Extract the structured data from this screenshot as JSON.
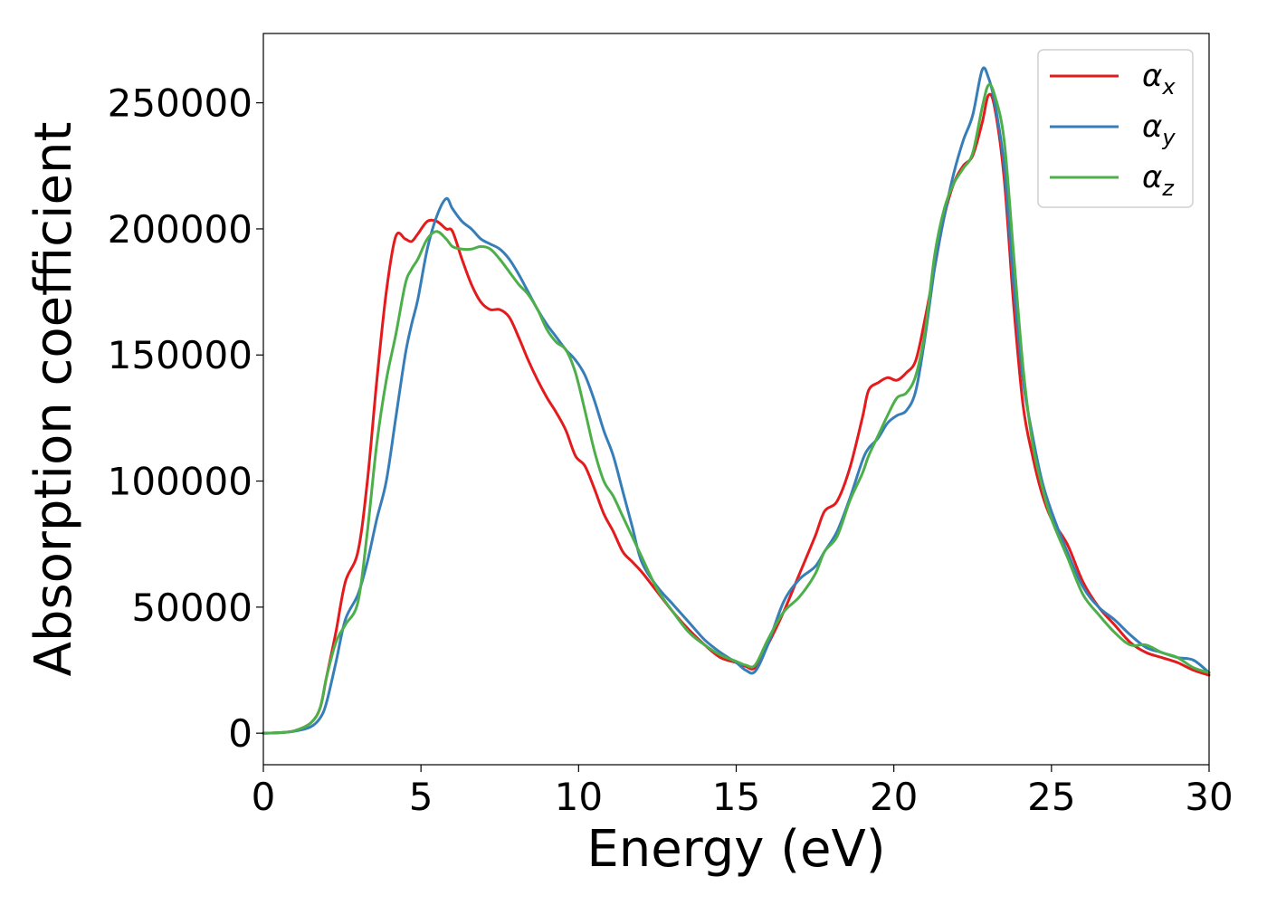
{
  "chart_data": {
    "type": "line",
    "xlabel": "Energy (eV)",
    "ylabel": "Absorption coefficient",
    "xlim": [
      0,
      30
    ],
    "ylim": [
      -12500,
      277500
    ],
    "x_ticks": [
      "0",
      "5",
      "10",
      "15",
      "20",
      "25",
      "30"
    ],
    "y_ticks": [
      "0",
      "50000",
      "100000",
      "150000",
      "200000",
      "250000"
    ],
    "grid": false,
    "legend_position": "top-right",
    "series": [
      {
        "name": "αx",
        "symbol": "α",
        "subscript": "x",
        "color": "#e41a1c",
        "x": [
          0,
          0.5,
          1,
          1.5,
          1.8,
          2,
          2.3,
          2.6,
          3,
          3.3,
          3.6,
          3.9,
          4.2,
          4.5,
          4.7,
          4.9,
          5.2,
          5.5,
          5.8,
          6,
          6.3,
          6.6,
          6.9,
          7.2,
          7.5,
          7.8,
          8.1,
          8.4,
          8.7,
          9.0,
          9.3,
          9.6,
          9.9,
          10.2,
          10.5,
          10.8,
          11.1,
          11.4,
          11.7,
          12,
          12.5,
          13,
          13.5,
          14,
          14.5,
          15,
          15.3,
          15.6,
          16,
          16.5,
          17,
          17.5,
          17.8,
          18.2,
          18.6,
          19.0,
          19.2,
          19.5,
          19.8,
          20.1,
          20.4,
          20.7,
          21,
          21.3,
          21.6,
          21.9,
          22.2,
          22.5,
          22.8,
          23.0,
          23.2,
          23.5,
          23.8,
          24.1,
          24.4,
          24.7,
          25,
          25.5,
          26,
          26.5,
          27,
          27.5,
          28,
          28.5,
          29,
          29.5,
          30
        ],
        "y": [
          0,
          200,
          1000,
          4000,
          10000,
          22000,
          40000,
          60000,
          72000,
          100000,
          140000,
          175000,
          197000,
          196000,
          195000,
          198000,
          203000,
          203000,
          200000,
          199000,
          188000,
          178000,
          171000,
          168000,
          168000,
          165000,
          157000,
          148000,
          140000,
          133000,
          127000,
          120000,
          110000,
          106000,
          97000,
          87000,
          80000,
          72000,
          68000,
          64000,
          56000,
          48000,
          41000,
          35000,
          30000,
          28000,
          26500,
          26000,
          35000,
          48000,
          63000,
          78000,
          88000,
          92000,
          105000,
          125000,
          136000,
          139000,
          141000,
          140000,
          143000,
          148000,
          165000,
          185000,
          205000,
          218000,
          225000,
          229000,
          242000,
          253000,
          248000,
          220000,
          170000,
          130000,
          110000,
          95000,
          85000,
          75000,
          60000,
          50000,
          43000,
          36000,
          32000,
          30000,
          28000,
          25000,
          23000
        ]
      },
      {
        "name": "αy",
        "symbol": "α",
        "subscript": "y",
        "color": "#377eb8",
        "x": [
          0,
          0.5,
          1,
          1.5,
          1.8,
          2,
          2.3,
          2.6,
          3,
          3.3,
          3.6,
          3.9,
          4.2,
          4.5,
          4.7,
          4.9,
          5.2,
          5.5,
          5.8,
          6,
          6.3,
          6.6,
          6.9,
          7.2,
          7.5,
          7.8,
          8.1,
          8.4,
          8.7,
          9.0,
          9.3,
          9.6,
          9.9,
          10.2,
          10.5,
          10.8,
          11.1,
          11.4,
          11.7,
          12,
          12.5,
          13,
          13.5,
          14,
          14.5,
          15,
          15.3,
          15.6,
          16,
          16.5,
          17,
          17.5,
          17.8,
          18.2,
          18.6,
          19.0,
          19.2,
          19.5,
          19.8,
          20.1,
          20.4,
          20.7,
          21,
          21.3,
          21.6,
          21.9,
          22.2,
          22.5,
          22.8,
          23.0,
          23.2,
          23.5,
          23.8,
          24.1,
          24.4,
          24.7,
          25,
          25.5,
          26,
          26.5,
          27,
          27.5,
          28,
          28.5,
          29,
          29.5,
          30
        ],
        "y": [
          0,
          200,
          800,
          2500,
          6000,
          12000,
          28000,
          45000,
          55000,
          68000,
          85000,
          100000,
          125000,
          150000,
          162000,
          172000,
          192000,
          205000,
          212000,
          208000,
          203000,
          200000,
          196000,
          194000,
          192000,
          188000,
          182000,
          175000,
          168000,
          162000,
          157000,
          152000,
          148000,
          142000,
          132000,
          120000,
          110000,
          96000,
          82000,
          68000,
          58000,
          51000,
          44000,
          37000,
          32000,
          28000,
          25000,
          24500,
          35000,
          52000,
          61000,
          66000,
          72000,
          80000,
          93000,
          108000,
          113000,
          117000,
          123000,
          126000,
          128000,
          136000,
          158000,
          185000,
          205000,
          222000,
          235000,
          245000,
          263000,
          260000,
          250000,
          225000,
          178000,
          140000,
          118000,
          100000,
          88000,
          72000,
          58000,
          50000,
          45000,
          39000,
          34000,
          32000,
          30000,
          29000,
          24000
        ]
      },
      {
        "name": "αz",
        "symbol": "α",
        "subscript": "z",
        "color": "#4daf4a",
        "x": [
          0,
          0.5,
          1,
          1.5,
          1.8,
          2,
          2.3,
          2.6,
          3,
          3.3,
          3.6,
          3.9,
          4.2,
          4.5,
          4.7,
          4.9,
          5.2,
          5.5,
          5.8,
          6,
          6.3,
          6.6,
          6.9,
          7.2,
          7.5,
          7.8,
          8.1,
          8.4,
          8.7,
          9.0,
          9.3,
          9.6,
          9.9,
          10.2,
          10.5,
          10.8,
          11.1,
          11.4,
          11.7,
          12,
          12.5,
          13,
          13.5,
          14,
          14.5,
          15,
          15.3,
          15.6,
          16,
          16.5,
          17,
          17.5,
          17.8,
          18.2,
          18.6,
          19.0,
          19.2,
          19.5,
          19.8,
          20.1,
          20.4,
          20.7,
          21,
          21.3,
          21.6,
          21.9,
          22.2,
          22.5,
          22.8,
          23.0,
          23.2,
          23.5,
          23.8,
          24.1,
          24.4,
          24.7,
          25,
          25.5,
          26,
          26.5,
          27,
          27.5,
          28,
          28.5,
          29,
          29.5,
          30
        ],
        "y": [
          0,
          200,
          1000,
          4000,
          10000,
          22000,
          36000,
          43000,
          52000,
          80000,
          115000,
          140000,
          158000,
          178000,
          184000,
          188000,
          196000,
          199000,
          196000,
          193000,
          192000,
          192000,
          193000,
          192000,
          188000,
          183000,
          178000,
          174000,
          168000,
          160000,
          155000,
          152000,
          143000,
          128000,
          112000,
          100000,
          94000,
          86000,
          78000,
          70000,
          57000,
          48000,
          40000,
          35000,
          31000,
          28500,
          27000,
          27000,
          37000,
          48000,
          54000,
          63000,
          72000,
          78000,
          92000,
          103000,
          110000,
          118000,
          126000,
          133000,
          135000,
          142000,
          160000,
          190000,
          208000,
          218000,
          224000,
          230000,
          248000,
          257000,
          253000,
          235000,
          190000,
          145000,
          115000,
          98000,
          85000,
          70000,
          55000,
          47000,
          40000,
          35000,
          35000,
          32000,
          30000,
          26000,
          24000
        ]
      }
    ]
  }
}
